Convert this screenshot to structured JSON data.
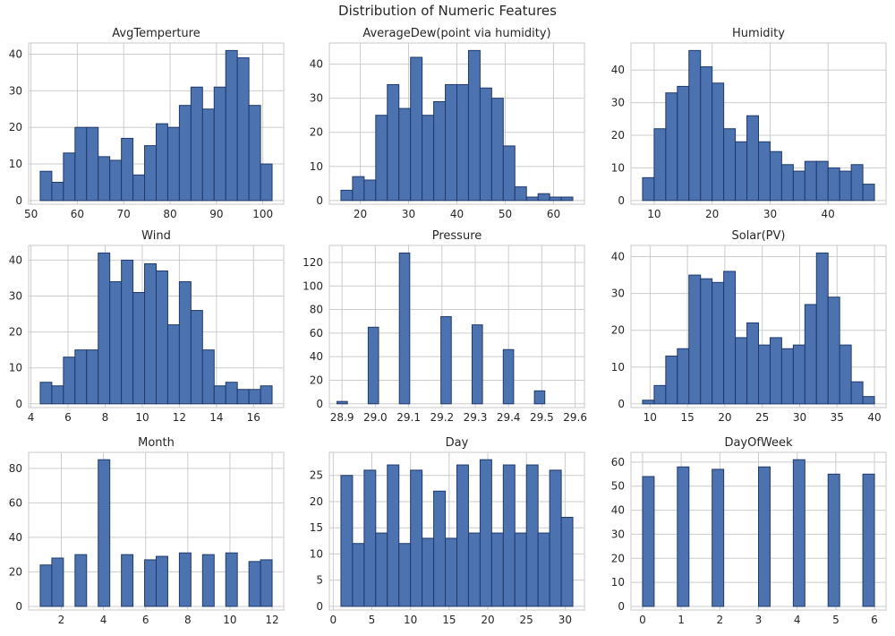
{
  "title": "Distribution of Numeric Features",
  "colors": {
    "bar_fill": "#4C72B0",
    "bar_edge": "#1f3a6d",
    "grid": "#cccccc",
    "axes_border": "#c8c8c8",
    "text": "#262626",
    "background": "#ffffff"
  },
  "chart_data": [
    {
      "type": "bar",
      "subtype": "histogram",
      "title": "AvgTemperture",
      "bin_start": 52,
      "bin_width": 2.5,
      "counts": [
        8,
        5,
        13,
        20,
        20,
        12,
        11,
        17,
        7,
        15,
        21,
        20,
        26,
        31,
        25,
        31,
        41,
        39,
        26,
        10
      ],
      "xlim": [
        49.5,
        104.5
      ],
      "ylim": [
        -1.0,
        43.05
      ],
      "xticks": [
        50,
        60,
        70,
        80,
        90,
        100
      ],
      "xtick_labels": [
        "50",
        "60",
        "70",
        "80",
        "90",
        "100"
      ],
      "yticks": [
        0,
        10,
        20,
        30,
        40
      ],
      "ytick_labels": [
        "0",
        "10",
        "20",
        "30",
        "40"
      ],
      "grid": true
    },
    {
      "type": "bar",
      "subtype": "histogram",
      "title": "AverageDew(point via humidity)",
      "bin_start": 16,
      "bin_width": 2.4,
      "counts": [
        3,
        7,
        6,
        25,
        34,
        27,
        42,
        25,
        29,
        34,
        34,
        44,
        33,
        30,
        16,
        4,
        1,
        2,
        1,
        1
      ],
      "xlim": [
        13.6,
        66.4
      ],
      "ylim": [
        -1.1,
        46.2
      ],
      "xticks": [
        20,
        30,
        40,
        50,
        60
      ],
      "xtick_labels": [
        "20",
        "30",
        "40",
        "50",
        "60"
      ],
      "yticks": [
        0,
        10,
        20,
        30,
        40
      ],
      "ytick_labels": [
        "0",
        "10",
        "20",
        "30",
        "40"
      ],
      "grid": true
    },
    {
      "type": "bar",
      "subtype": "histogram",
      "title": "Humidity",
      "bin_start": 8,
      "bin_width": 2.0,
      "counts": [
        7,
        22,
        33,
        35,
        46,
        41,
        36,
        22,
        18,
        26,
        18,
        15,
        11,
        9,
        12,
        12,
        10,
        9,
        11,
        5
      ],
      "xlim": [
        6.0,
        50.0
      ],
      "ylim": [
        -1.15,
        48.3
      ],
      "xticks": [
        10,
        20,
        30,
        40
      ],
      "xtick_labels": [
        "10",
        "20",
        "30",
        "40"
      ],
      "yticks": [
        0,
        10,
        20,
        30,
        40
      ],
      "ytick_labels": [
        "0",
        "10",
        "20",
        "30",
        "40"
      ],
      "grid": true
    },
    {
      "type": "bar",
      "subtype": "histogram",
      "title": "Wind",
      "bin_start": 4.5,
      "bin_width": 0.625,
      "counts": [
        6,
        5,
        13,
        15,
        15,
        42,
        34,
        40,
        31,
        39,
        37,
        22,
        34,
        26,
        15,
        5,
        6,
        4,
        4,
        5
      ],
      "xlim": [
        3.875,
        17.625
      ],
      "ylim": [
        -1.05,
        44.1
      ],
      "xticks": [
        4,
        6,
        8,
        10,
        12,
        14,
        16
      ],
      "xtick_labels": [
        "4",
        "6",
        "8",
        "10",
        "12",
        "14",
        "16"
      ],
      "yticks": [
        0,
        10,
        20,
        30,
        40
      ],
      "ytick_labels": [
        "0",
        "10",
        "20",
        "30",
        "40"
      ],
      "grid": true
    },
    {
      "type": "bar",
      "subtype": "histogram",
      "title": "Pressure",
      "bin_start": 28.885,
      "bin_width": 0.0312,
      "counts": [
        2,
        0,
        0,
        65,
        0,
        0,
        128,
        0,
        0,
        0,
        74,
        0,
        0,
        67,
        0,
        0,
        46,
        0,
        0,
        11
      ],
      "xlim": [
        28.862,
        29.628
      ],
      "ylim": [
        -3.2,
        134.4
      ],
      "xticks": [
        28.9,
        29.0,
        29.1,
        29.2,
        29.3,
        29.4,
        29.5,
        29.6
      ],
      "xtick_labels": [
        "28.9",
        "29.0",
        "29.1",
        "29.2",
        "29.3",
        "29.4",
        "29.5",
        "29.6"
      ],
      "yticks": [
        0,
        20,
        40,
        60,
        80,
        100,
        120
      ],
      "ytick_labels": [
        "0",
        "20",
        "40",
        "60",
        "80",
        "100",
        "120"
      ],
      "grid": true
    },
    {
      "type": "bar",
      "subtype": "histogram",
      "title": "Solar(PV)",
      "bin_start": 9.0,
      "bin_width": 1.55,
      "counts": [
        1,
        5,
        13,
        15,
        35,
        34,
        33,
        36,
        18,
        22,
        16,
        18,
        15,
        16,
        27,
        41,
        29,
        16,
        6,
        2
      ],
      "xlim": [
        7.45,
        41.55
      ],
      "ylim": [
        -1.0,
        43.05
      ],
      "xticks": [
        10,
        15,
        20,
        25,
        30,
        35,
        40
      ],
      "xtick_labels": [
        "10",
        "15",
        "20",
        "25",
        "30",
        "35",
        "40"
      ],
      "yticks": [
        0,
        10,
        20,
        30,
        40
      ],
      "ytick_labels": [
        "0",
        "10",
        "20",
        "30",
        "40"
      ],
      "grid": true
    },
    {
      "type": "bar",
      "subtype": "histogram",
      "title": "Month",
      "bin_start": 1.0,
      "bin_width": 0.55,
      "counts": [
        24,
        28,
        0,
        30,
        0,
        85,
        0,
        30,
        0,
        27,
        29,
        0,
        31,
        0,
        30,
        0,
        31,
        0,
        26,
        27
      ],
      "xlim": [
        0.45,
        12.55
      ],
      "ylim": [
        -2.1,
        89.25
      ],
      "xticks": [
        2,
        4,
        6,
        8,
        10,
        12
      ],
      "xtick_labels": [
        "2",
        "4",
        "6",
        "8",
        "10",
        "12"
      ],
      "yticks": [
        0,
        20,
        40,
        60,
        80
      ],
      "ytick_labels": [
        "0",
        "20",
        "40",
        "60",
        "80"
      ],
      "grid": true
    },
    {
      "type": "bar",
      "subtype": "histogram",
      "title": "Day",
      "bin_start": 1.0,
      "bin_width": 1.5,
      "counts": [
        25,
        12,
        26,
        14,
        27,
        12,
        26,
        13,
        22,
        13,
        27,
        14,
        28,
        14,
        27,
        14,
        27,
        14,
        26,
        17
      ],
      "xlim": [
        -0.5,
        32.5
      ],
      "ylim": [
        -0.7,
        29.4
      ],
      "xticks": [
        0,
        5,
        10,
        15,
        20,
        25,
        30
      ],
      "xtick_labels": [
        "0",
        "5",
        "10",
        "15",
        "20",
        "25",
        "30"
      ],
      "yticks": [
        0,
        5,
        10,
        15,
        20,
        25
      ],
      "ytick_labels": [
        "0",
        "5",
        "10",
        "15",
        "20",
        "25"
      ],
      "grid": true
    },
    {
      "type": "bar",
      "subtype": "histogram",
      "title": "DayOfWeek",
      "bin_start": 0.0,
      "bin_width": 0.3,
      "counts": [
        54,
        0,
        0,
        58,
        0,
        0,
        57,
        0,
        0,
        0,
        58,
        0,
        0,
        61,
        0,
        0,
        55,
        0,
        0,
        55
      ],
      "xlim": [
        -0.3,
        6.3
      ],
      "ylim": [
        -1.5,
        64.05
      ],
      "xticks": [
        0,
        1,
        2,
        3,
        4,
        5,
        6
      ],
      "xtick_labels": [
        "0",
        "1",
        "2",
        "3",
        "4",
        "5",
        "6"
      ],
      "yticks": [
        0,
        10,
        20,
        30,
        40,
        50,
        60
      ],
      "ytick_labels": [
        "0",
        "10",
        "20",
        "30",
        "40",
        "50",
        "60"
      ],
      "grid": true
    }
  ]
}
